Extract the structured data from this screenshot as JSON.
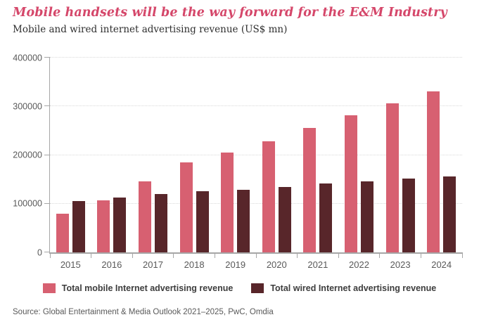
{
  "header": {
    "title": "Mobile handsets will be the way forward for the E&M Industry",
    "subtitle": "Mobile and wired internet advertising revenue (US$ mn)"
  },
  "colors": {
    "title": "#d5476a",
    "mobile_bar": "#d76071",
    "wired_bar": "#58262a",
    "axis": "#a6a6a6",
    "gridline": "#d9d9d9",
    "tick_label": "#595959"
  },
  "chart_data": {
    "type": "bar",
    "title": "Mobile and wired internet advertising revenue (US$ mn)",
    "categories": [
      "2015",
      "2016",
      "2017",
      "2018",
      "2019",
      "2020",
      "2021",
      "2022",
      "2023",
      "2024"
    ],
    "series": [
      {
        "name": "Total mobile Internet advertising revenue",
        "color": "#d76071",
        "values": [
          80000,
          107000,
          146000,
          185000,
          205000,
          228000,
          255000,
          281000,
          306000,
          331000
        ]
      },
      {
        "name": "Total wired Internet advertising revenue",
        "color": "#58262a",
        "values": [
          106000,
          113000,
          120000,
          125000,
          129000,
          135000,
          141000,
          146000,
          151000,
          156000
        ]
      }
    ],
    "xlabel": "",
    "ylabel": "",
    "ylim": [
      0,
      400000
    ],
    "yticks": [
      0,
      100000,
      200000,
      300000,
      400000
    ],
    "grid": "horizontal dotted",
    "legend_position": "bottom"
  },
  "footer": {
    "source": "Source: Global Entertainment & Media Outlook 2021–2025, PwC, Omdia"
  }
}
